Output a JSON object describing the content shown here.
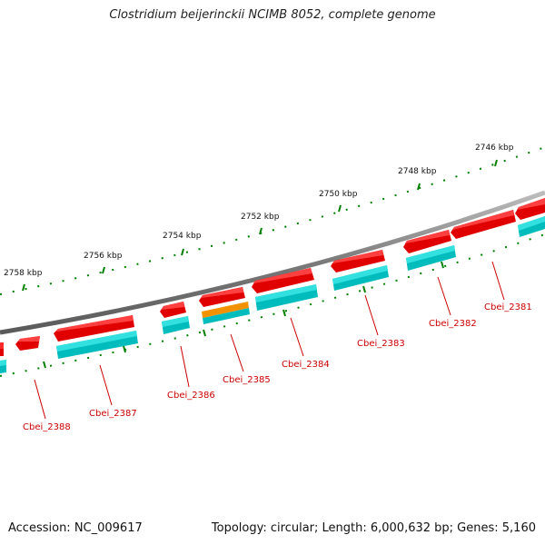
{
  "title": "Clostridium beijerinckii NCIMB 8052, complete genome",
  "footer": {
    "accession": "Accession: NC_009617",
    "topology": "Topology: circular; Length: 6,000,632 bp; Genes: 5,160"
  },
  "scale": {
    "labels": [
      "2746 kbp",
      "2748 kbp",
      "2750 kbp",
      "2752 kbp",
      "2754 kbp",
      "2756 kbp",
      "2758 kbp"
    ]
  },
  "genes": {
    "labels": [
      "Cbei_2381",
      "Cbei_2382",
      "Cbei_2383",
      "Cbei_2384",
      "Cbei_2385",
      "Cbei_2386",
      "Cbei_2387",
      "Cbei_2388"
    ]
  },
  "colors": {
    "backbone": "#808080",
    "cds_feature": "#ff0000",
    "gene_feature": "#00c8c8",
    "highlight_feature": "#ff9900",
    "ticks": "#008000",
    "gene_label": "#cc0000"
  }
}
